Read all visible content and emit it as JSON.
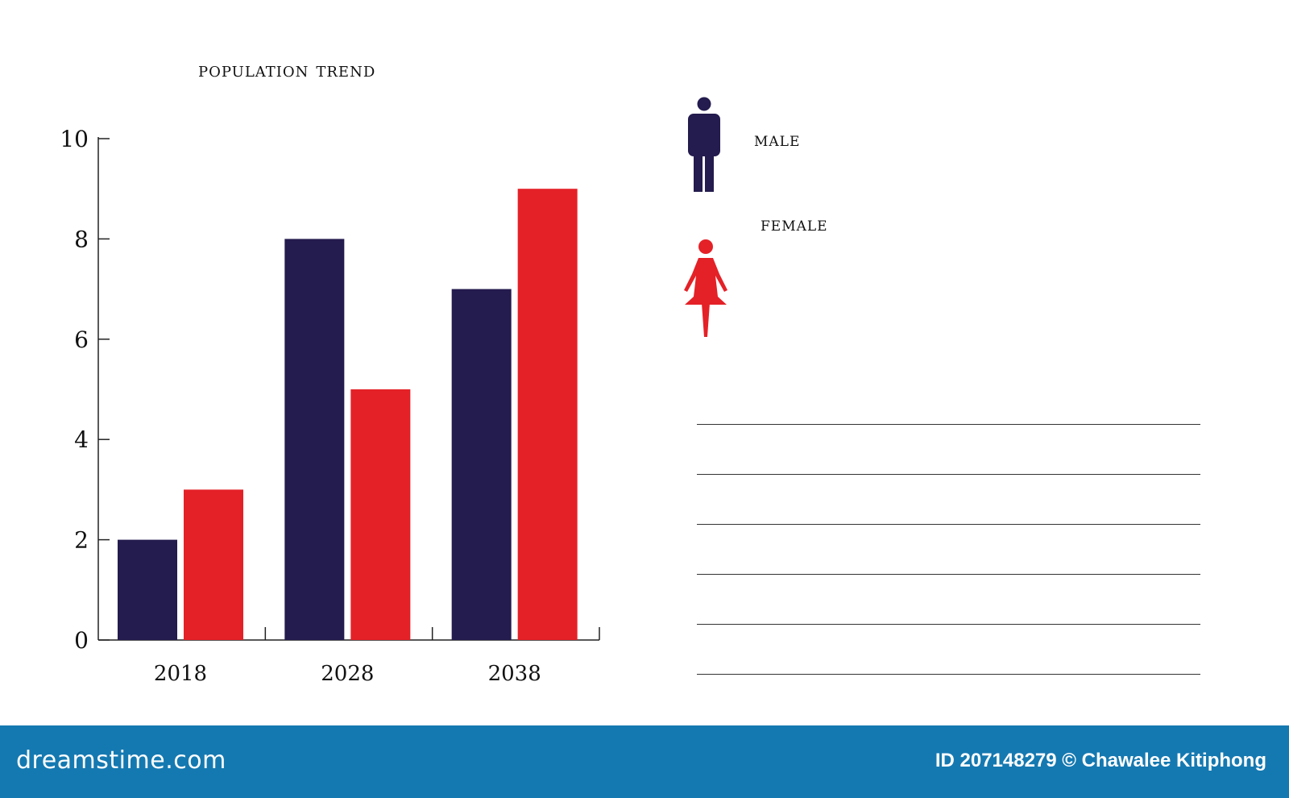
{
  "colors": {
    "male": "#241b4e",
    "female": "#e42127",
    "footer_bg": "#1579b1"
  },
  "legend": {
    "male_label": "MALE",
    "female_label": "FEMALE",
    "male_icon": "male-person-icon",
    "female_icon": "female-person-icon"
  },
  "chart_data": {
    "type": "bar",
    "title": "POPULATION TREND",
    "categories": [
      "2018",
      "2028",
      "2038"
    ],
    "series": [
      {
        "name": "MALE",
        "values": [
          2,
          8,
          7
        ],
        "color": "#241b4e"
      },
      {
        "name": "FEMALE",
        "values": [
          3,
          5,
          9
        ],
        "color": "#e42127"
      }
    ],
    "yticks": [
      "0",
      "2",
      "4",
      "6",
      "8",
      "10"
    ],
    "ylim": [
      0,
      10
    ],
    "xlabel": "",
    "ylabel": "",
    "grid": false,
    "legend_position": "right"
  },
  "notes": {
    "line_count": 6
  },
  "footer": {
    "brand": "dreamstime.com",
    "credit": "ID 207148279 © Chawalee Kitiphong"
  }
}
